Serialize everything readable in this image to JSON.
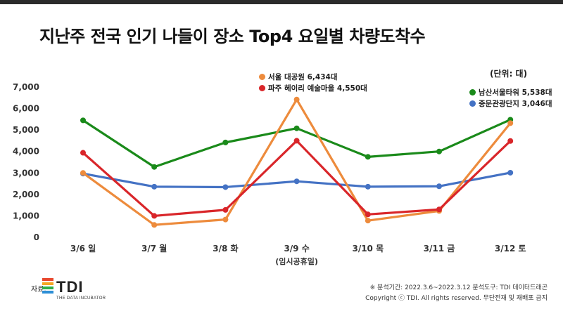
{
  "title": "지난주 전국 인기 나들이 장소 Top4 요일별 차량도착수",
  "unit_label": "(단위: 대)",
  "chart_data": {
    "type": "line",
    "categories": [
      "3/6 일",
      "3/7 월",
      "3/8 화",
      "3/9 수",
      "3/10 목",
      "3/11 금",
      "3/12 토"
    ],
    "category_sublabels": [
      "",
      "",
      "",
      "(임시공휴일)",
      "",
      "",
      ""
    ],
    "ylim": [
      0,
      7000
    ],
    "yticks": [
      0,
      1000,
      2000,
      3000,
      4000,
      5000,
      6000,
      7000
    ],
    "ytick_labels": [
      "0",
      "1,000",
      "2,000",
      "3,000",
      "4,000",
      "5,000",
      "6,000",
      "7,000"
    ],
    "grid": false,
    "series": [
      {
        "name": "남산서울타워 5,538대",
        "color": "#1a8a1a",
        "values": [
          5450,
          3280,
          4420,
          5080,
          3750,
          4000,
          5480
        ]
      },
      {
        "name": "중문관광단지 3,046대",
        "color": "#4472c4",
        "values": [
          2970,
          2360,
          2340,
          2610,
          2360,
          2380,
          3010
        ]
      },
      {
        "name": "서울 대공원 6,434대",
        "color": "#ed8b3c",
        "values": [
          3000,
          580,
          830,
          6420,
          780,
          1230,
          5320
        ]
      },
      {
        "name": "파주 헤이리 예술마을 4,550대",
        "color": "#d9262a",
        "values": [
          3940,
          1000,
          1280,
          4500,
          1070,
          1300,
          4490
        ]
      }
    ]
  },
  "legend_left": [
    {
      "label": "서울 대공원 6,434대",
      "color": "#ed8b3c"
    },
    {
      "label": "파주 헤이리 예술마을 4,550대",
      "color": "#d9262a"
    }
  ],
  "legend_right": [
    {
      "label": "남산서울타워 5,538대",
      "color": "#1a8a1a"
    },
    {
      "label": "중문관광단지 3,046대",
      "color": "#4472c4"
    }
  ],
  "source": {
    "label": "자료:",
    "logo_text": "TDI",
    "logo_sub": "THE DATA INCUBATOR",
    "note": "※ 분석기간: 2022.3.6~2022.3.12  분석도구: TDI 데이터드래곤",
    "copyright": "Copyright ⓒ TDI. All rights reserved. 무단전재 및 재배포 금지"
  },
  "colors": {
    "logo_bars": [
      "#e8472e",
      "#f6a623",
      "#2fae49",
      "#2d8fd6",
      "#7a4bb5"
    ]
  }
}
